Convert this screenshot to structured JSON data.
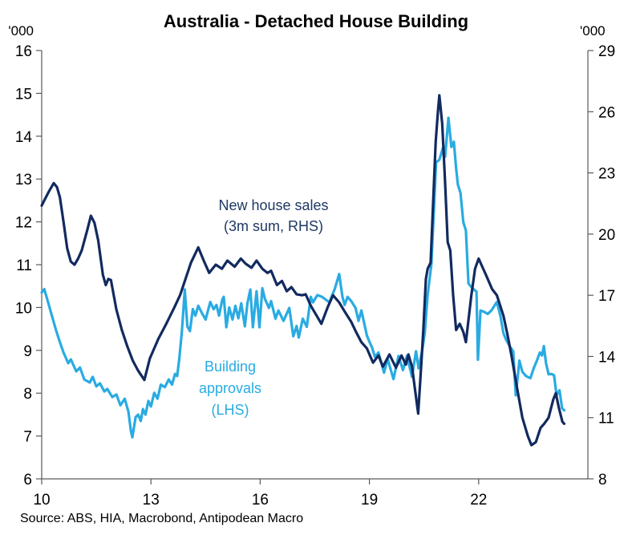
{
  "header": {
    "title": "Australia - Detached House Building"
  },
  "colors": {
    "navy_line": "#122a5f",
    "navy_text": "#1f3864",
    "cyan": "#29abe2",
    "axis": "#595959",
    "text": "#000000"
  },
  "chart_data": {
    "type": "line",
    "title": "Australia - Detached House Building",
    "source": "Source: ABS, HIA, Macrobond, Antipodean Macro",
    "grid": false,
    "x_axis": {
      "ticks": [
        10,
        13,
        16,
        19,
        22
      ],
      "min": 10,
      "max": 25
    },
    "left_axis": {
      "unit": "'000",
      "min": 6,
      "max": 16,
      "ticks": [
        6,
        7,
        8,
        9,
        10,
        11,
        12,
        13,
        14,
        15,
        16
      ]
    },
    "right_axis": {
      "unit": "'000",
      "min": 8,
      "max": 29,
      "ticks": [
        8,
        11,
        14,
        17,
        20,
        23,
        26,
        29
      ]
    },
    "series": [
      {
        "name": "Building approvals (LHS)",
        "axis": "left",
        "color": "#29abe2",
        "label_color": "#29abe2",
        "label_lines": [
          "Building",
          "approvals",
          "(LHS)"
        ],
        "points": [
          [
            10.0,
            10.35
          ],
          [
            10.07,
            10.43
          ],
          [
            10.15,
            10.2
          ],
          [
            10.3,
            9.75
          ],
          [
            10.4,
            9.45
          ],
          [
            10.5,
            9.19
          ],
          [
            10.6,
            8.95
          ],
          [
            10.73,
            8.7
          ],
          [
            10.8,
            8.79
          ],
          [
            10.95,
            8.51
          ],
          [
            11.05,
            8.6
          ],
          [
            11.17,
            8.32
          ],
          [
            11.32,
            8.25
          ],
          [
            11.4,
            8.38
          ],
          [
            11.5,
            8.16
          ],
          [
            11.6,
            8.23
          ],
          [
            11.72,
            8.04
          ],
          [
            11.8,
            8.1
          ],
          [
            11.94,
            7.91
          ],
          [
            12.05,
            7.97
          ],
          [
            12.16,
            7.72
          ],
          [
            12.28,
            7.87
          ],
          [
            12.38,
            7.57
          ],
          [
            12.45,
            7.12
          ],
          [
            12.49,
            6.97
          ],
          [
            12.58,
            7.44
          ],
          [
            12.65,
            7.5
          ],
          [
            12.72,
            7.35
          ],
          [
            12.78,
            7.63
          ],
          [
            12.85,
            7.5
          ],
          [
            12.93,
            7.82
          ],
          [
            13.0,
            7.69
          ],
          [
            13.09,
            8.01
          ],
          [
            13.18,
            7.87
          ],
          [
            13.27,
            8.2
          ],
          [
            13.38,
            8.14
          ],
          [
            13.49,
            8.32
          ],
          [
            13.58,
            8.2
          ],
          [
            13.66,
            8.45
          ],
          [
            13.72,
            8.4
          ],
          [
            13.78,
            8.81
          ],
          [
            13.85,
            9.45
          ],
          [
            13.93,
            10.42
          ],
          [
            14.0,
            9.56
          ],
          [
            14.07,
            9.45
          ],
          [
            14.15,
            9.96
          ],
          [
            14.22,
            9.81
          ],
          [
            14.3,
            10.04
          ],
          [
            14.4,
            9.87
          ],
          [
            14.5,
            9.72
          ],
          [
            14.63,
            10.13
          ],
          [
            14.72,
            9.96
          ],
          [
            14.8,
            10.06
          ],
          [
            14.87,
            9.81
          ],
          [
            14.96,
            10.19
          ],
          [
            15.0,
            10.25
          ],
          [
            15.07,
            9.54
          ],
          [
            15.15,
            10.0
          ],
          [
            15.24,
            9.72
          ],
          [
            15.32,
            10.04
          ],
          [
            15.4,
            9.75
          ],
          [
            15.48,
            10.1
          ],
          [
            15.58,
            9.56
          ],
          [
            15.65,
            10.1
          ],
          [
            15.73,
            10.42
          ],
          [
            15.8,
            9.54
          ],
          [
            15.9,
            10.38
          ],
          [
            15.98,
            9.54
          ],
          [
            16.06,
            10.45
          ],
          [
            16.13,
            10.2
          ],
          [
            16.24,
            9.99
          ],
          [
            16.3,
            10.15
          ],
          [
            16.42,
            9.74
          ],
          [
            16.5,
            9.93
          ],
          [
            16.64,
            9.69
          ],
          [
            16.8,
            9.99
          ],
          [
            16.91,
            9.33
          ],
          [
            17.0,
            9.57
          ],
          [
            17.06,
            9.3
          ],
          [
            17.17,
            9.74
          ],
          [
            17.28,
            9.55
          ],
          [
            17.39,
            10.25
          ],
          [
            17.45,
            10.12
          ],
          [
            17.57,
            10.29
          ],
          [
            17.7,
            10.25
          ],
          [
            17.9,
            10.12
          ],
          [
            18.05,
            10.44
          ],
          [
            18.17,
            10.78
          ],
          [
            18.26,
            10.25
          ],
          [
            18.32,
            10.06
          ],
          [
            18.4,
            10.25
          ],
          [
            18.5,
            10.15
          ],
          [
            18.62,
            9.99
          ],
          [
            18.7,
            9.69
          ],
          [
            18.78,
            9.93
          ],
          [
            18.93,
            9.35
          ],
          [
            19.0,
            9.2
          ],
          [
            19.07,
            9.07
          ],
          [
            19.15,
            8.85
          ],
          [
            19.25,
            8.95
          ],
          [
            19.4,
            8.48
          ],
          [
            19.5,
            8.8
          ],
          [
            19.66,
            8.33
          ],
          [
            19.8,
            8.87
          ],
          [
            19.92,
            8.54
          ],
          [
            20.03,
            8.87
          ],
          [
            20.17,
            8.38
          ],
          [
            20.28,
            8.98
          ],
          [
            20.35,
            8.58
          ],
          [
            20.45,
            9.0
          ],
          [
            20.52,
            9.4
          ],
          [
            20.6,
            10.3
          ],
          [
            20.7,
            11.0
          ],
          [
            20.77,
            12.26
          ],
          [
            20.83,
            13.39
          ],
          [
            20.92,
            13.45
          ],
          [
            21.03,
            13.76
          ],
          [
            21.08,
            13.52
          ],
          [
            21.17,
            14.43
          ],
          [
            21.25,
            13.75
          ],
          [
            21.32,
            13.87
          ],
          [
            21.38,
            13.25
          ],
          [
            21.43,
            12.87
          ],
          [
            21.5,
            12.68
          ],
          [
            21.58,
            11.99
          ],
          [
            21.65,
            11.8
          ],
          [
            21.72,
            10.56
          ],
          [
            21.83,
            10.45
          ],
          [
            21.94,
            10.37
          ],
          [
            21.98,
            8.78
          ],
          [
            22.05,
            9.93
          ],
          [
            22.15,
            9.9
          ],
          [
            22.25,
            9.85
          ],
          [
            22.35,
            9.93
          ],
          [
            22.5,
            10.13
          ],
          [
            22.6,
            9.8
          ],
          [
            22.68,
            9.4
          ],
          [
            22.75,
            9.25
          ],
          [
            22.85,
            9.1
          ],
          [
            22.95,
            8.98
          ],
          [
            23.02,
            7.95
          ],
          [
            23.12,
            8.76
          ],
          [
            23.2,
            8.5
          ],
          [
            23.3,
            8.4
          ],
          [
            23.42,
            8.35
          ],
          [
            23.52,
            8.6
          ],
          [
            23.6,
            8.76
          ],
          [
            23.68,
            8.95
          ],
          [
            23.74,
            8.88
          ],
          [
            23.79,
            9.1
          ],
          [
            23.85,
            8.7
          ],
          [
            23.92,
            8.44
          ],
          [
            24.0,
            8.45
          ],
          [
            24.07,
            8.42
          ],
          [
            24.14,
            7.95
          ],
          [
            24.22,
            8.07
          ],
          [
            24.29,
            7.65
          ],
          [
            24.35,
            7.6
          ]
        ]
      },
      {
        "name": "New house sales (3m sum, RHS)",
        "axis": "right",
        "color": "#122a5f",
        "label_color": "#1f3864",
        "label_lines": [
          "New house sales",
          "(3m sum, RHS)"
        ],
        "points": [
          [
            10.0,
            21.4
          ],
          [
            10.1,
            21.75
          ],
          [
            10.2,
            22.1
          ],
          [
            10.33,
            22.5
          ],
          [
            10.42,
            22.3
          ],
          [
            10.5,
            21.8
          ],
          [
            10.6,
            20.6
          ],
          [
            10.7,
            19.3
          ],
          [
            10.8,
            18.65
          ],
          [
            10.9,
            18.5
          ],
          [
            11.0,
            18.8
          ],
          [
            11.1,
            19.2
          ],
          [
            11.25,
            20.2
          ],
          [
            11.35,
            20.9
          ],
          [
            11.45,
            20.55
          ],
          [
            11.55,
            19.7
          ],
          [
            11.68,
            18.0
          ],
          [
            11.76,
            17.5
          ],
          [
            11.83,
            17.8
          ],
          [
            11.9,
            17.75
          ],
          [
            12.05,
            16.3
          ],
          [
            12.2,
            15.3
          ],
          [
            12.35,
            14.5
          ],
          [
            12.5,
            13.8
          ],
          [
            12.65,
            13.3
          ],
          [
            12.82,
            12.85
          ],
          [
            12.97,
            13.9
          ],
          [
            13.2,
            14.85
          ],
          [
            13.42,
            15.6
          ],
          [
            13.64,
            16.4
          ],
          [
            13.8,
            17.0
          ],
          [
            13.95,
            17.8
          ],
          [
            14.1,
            18.6
          ],
          [
            14.3,
            19.35
          ],
          [
            14.45,
            18.7
          ],
          [
            14.6,
            18.1
          ],
          [
            14.78,
            18.5
          ],
          [
            14.95,
            18.3
          ],
          [
            15.1,
            18.7
          ],
          [
            15.3,
            18.4
          ],
          [
            15.47,
            18.8
          ],
          [
            15.6,
            18.55
          ],
          [
            15.76,
            18.35
          ],
          [
            15.9,
            18.7
          ],
          [
            16.06,
            18.3
          ],
          [
            16.2,
            18.1
          ],
          [
            16.3,
            18.2
          ],
          [
            16.46,
            17.5
          ],
          [
            16.6,
            17.7
          ],
          [
            16.73,
            17.2
          ],
          [
            16.86,
            17.4
          ],
          [
            17.0,
            17.05
          ],
          [
            17.15,
            17.0
          ],
          [
            17.25,
            17.05
          ],
          [
            17.4,
            16.45
          ],
          [
            17.55,
            16.0
          ],
          [
            17.68,
            15.6
          ],
          [
            17.85,
            16.4
          ],
          [
            18.0,
            17.0
          ],
          [
            18.17,
            16.65
          ],
          [
            18.34,
            16.15
          ],
          [
            18.5,
            15.7
          ],
          [
            18.62,
            15.25
          ],
          [
            18.78,
            14.7
          ],
          [
            18.93,
            14.4
          ],
          [
            19.1,
            13.7
          ],
          [
            19.25,
            14.05
          ],
          [
            19.37,
            13.5
          ],
          [
            19.55,
            14.1
          ],
          [
            19.73,
            13.45
          ],
          [
            19.88,
            14.05
          ],
          [
            20.0,
            13.6
          ],
          [
            20.07,
            14.1
          ],
          [
            20.17,
            13.5
          ],
          [
            20.34,
            11.2
          ],
          [
            20.42,
            13.5
          ],
          [
            20.48,
            15.3
          ],
          [
            20.55,
            17.8
          ],
          [
            20.6,
            18.3
          ],
          [
            20.68,
            18.6
          ],
          [
            20.75,
            21.5
          ],
          [
            20.82,
            24.5
          ],
          [
            20.88,
            26.0
          ],
          [
            20.92,
            26.8
          ],
          [
            21.0,
            25.4
          ],
          [
            21.08,
            22.5
          ],
          [
            21.15,
            19.6
          ],
          [
            21.22,
            19.2
          ],
          [
            21.3,
            17.0
          ],
          [
            21.38,
            15.3
          ],
          [
            21.48,
            15.6
          ],
          [
            21.58,
            15.2
          ],
          [
            21.65,
            14.7
          ],
          [
            21.8,
            17.0
          ],
          [
            21.9,
            18.3
          ],
          [
            22.0,
            18.8
          ],
          [
            22.1,
            18.4
          ],
          [
            22.2,
            18.0
          ],
          [
            22.37,
            17.3
          ],
          [
            22.5,
            17.0
          ],
          [
            22.68,
            16.0
          ],
          [
            22.8,
            15.0
          ],
          [
            22.9,
            14.05
          ],
          [
            23.05,
            12.5
          ],
          [
            23.2,
            11.0
          ],
          [
            23.35,
            10.1
          ],
          [
            23.45,
            9.65
          ],
          [
            23.57,
            9.8
          ],
          [
            23.7,
            10.5
          ],
          [
            23.8,
            10.7
          ],
          [
            23.92,
            11.0
          ],
          [
            24.05,
            11.9
          ],
          [
            24.12,
            12.2
          ],
          [
            24.2,
            11.5
          ],
          [
            24.3,
            10.8
          ],
          [
            24.35,
            10.7
          ]
        ]
      }
    ]
  }
}
